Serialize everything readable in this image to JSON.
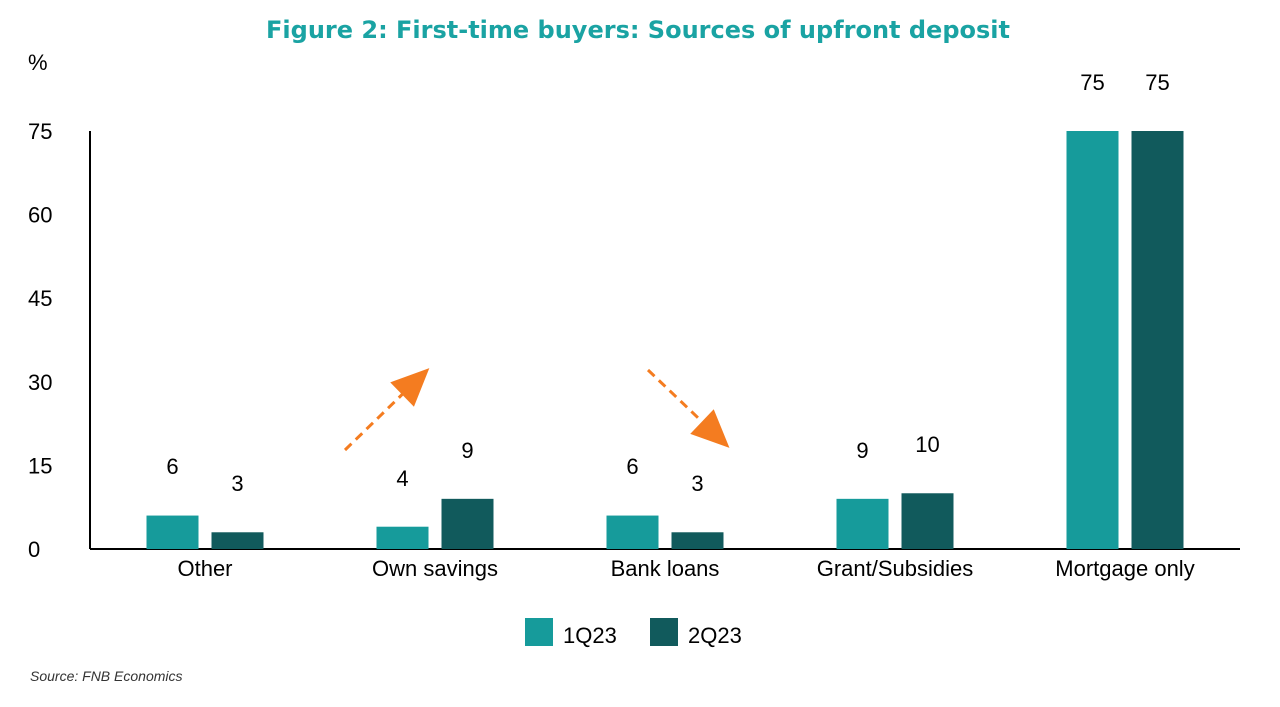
{
  "chart_data": {
    "type": "bar",
    "title": "Figure 2: First-time buyers: Sources of upfront deposit",
    "ylabel": "%",
    "ylim": [
      0,
      75
    ],
    "yticks": [
      0,
      15,
      30,
      45,
      60,
      75
    ],
    "categories": [
      "Other",
      "Own savings",
      "Bank loans",
      "Grant/Subsidies",
      "Mortgage only"
    ],
    "series": [
      {
        "name": "1Q23",
        "color": "#169b9b",
        "values": [
          6,
          4,
          6,
          9,
          75
        ],
        "labels": [
          "6",
          "4",
          "6",
          "9",
          "75"
        ]
      },
      {
        "name": "2Q23",
        "color": "#115a5c",
        "values": [
          3,
          9,
          3,
          10,
          75
        ],
        "labels": [
          "3",
          "9",
          "3",
          "10",
          "75"
        ]
      }
    ],
    "annotations": [
      {
        "type": "arrow",
        "direction": "up",
        "category": "Own savings",
        "color": "#f47c20"
      },
      {
        "type": "arrow",
        "direction": "down",
        "category": "Bank loans",
        "color": "#f47c20"
      }
    ],
    "grid": false,
    "legend": "bottom-center",
    "title_color": "#1aa3a3",
    "source": "Source: FNB Economics"
  }
}
